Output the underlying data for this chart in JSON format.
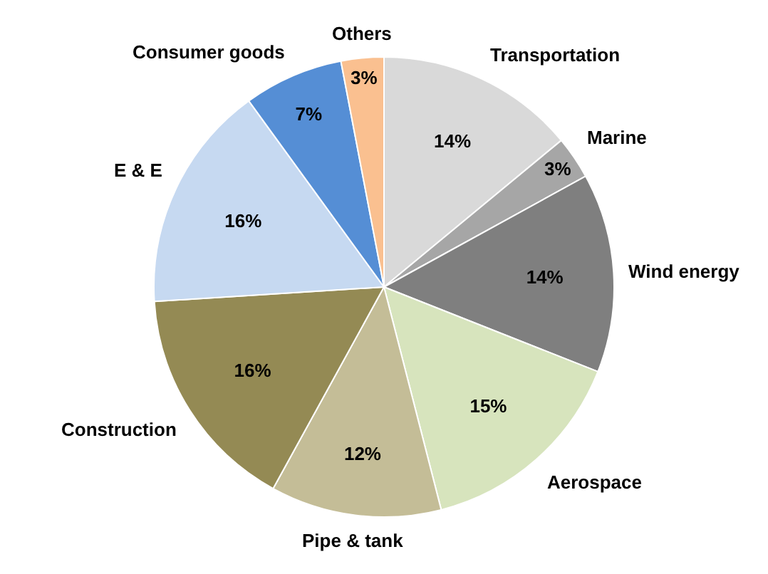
{
  "chart_data": {
    "type": "pie",
    "categories": [
      "Transportation",
      "Marine",
      "Wind energy",
      "Aerospace",
      "Pipe & tank",
      "Construction",
      "E & E",
      "Consumer goods",
      "Others"
    ],
    "values": [
      14,
      3,
      14,
      15,
      12,
      16,
      16,
      7,
      3
    ],
    "value_labels": [
      "14%",
      "3%",
      "14%",
      "15%",
      "12%",
      "16%",
      "16%",
      "7%",
      "3%"
    ],
    "colors": [
      "#d9d9d9",
      "#a6a6a6",
      "#7f7f7f",
      "#d7e4bd",
      "#c4bd97",
      "#948a54",
      "#c6d9f1",
      "#558ed5",
      "#fac090"
    ],
    "legend": false
  }
}
